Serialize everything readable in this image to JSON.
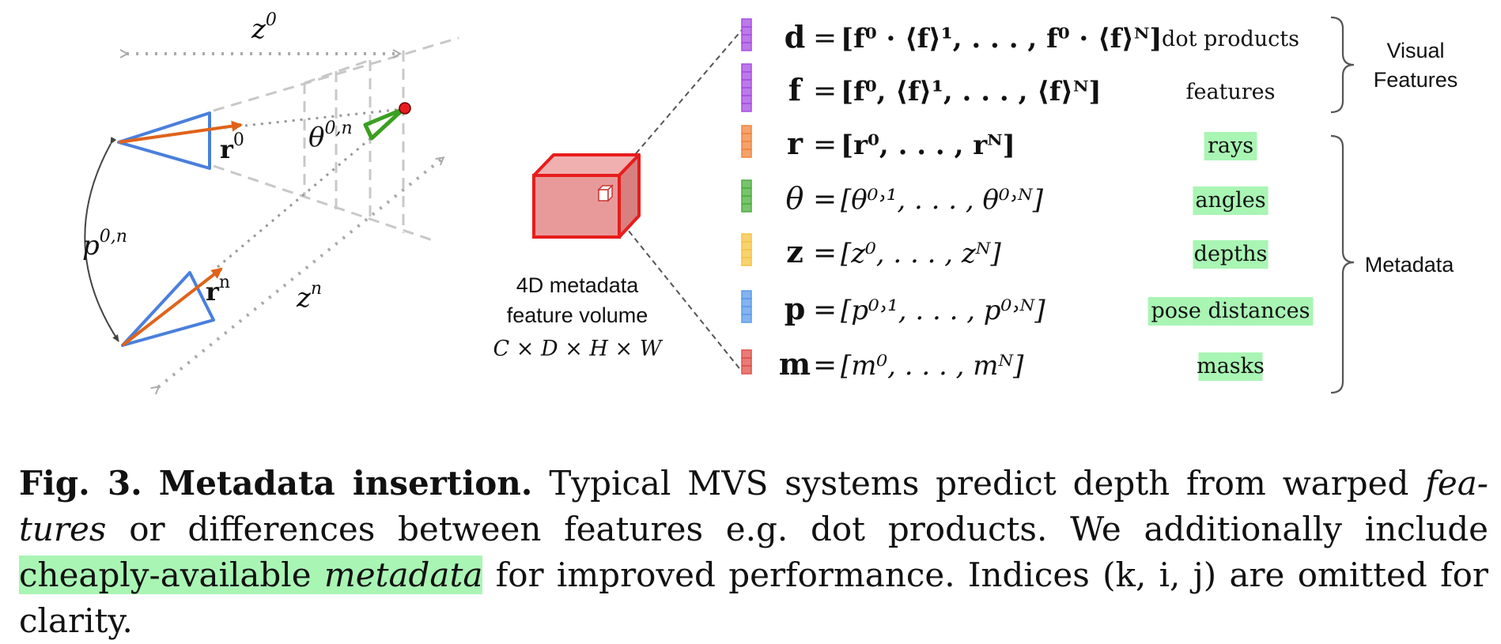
{
  "figure": {
    "cameras": {
      "z0": "z",
      "z0_sup": "0",
      "zn": "z",
      "zn_sup": "n",
      "theta": "θ",
      "theta_sup": "0,n",
      "r0": "r",
      "r0_sup": "0",
      "rn": "r",
      "rn_sup": "n",
      "p": "p",
      "p_sup": "0,n"
    },
    "volume": {
      "label_line1": "4D metadata",
      "label_line2": "feature volume",
      "dims": "C × D × H × W"
    },
    "rows": [
      {
        "sym": "d",
        "rhs": "[f⁰ · ⟨f⟩¹, . . . , f⁰ · ⟨f⟩ᴺ]",
        "label": "dot products",
        "highlight": false,
        "color": "#a64ee0"
      },
      {
        "sym": "f",
        "rhs": "[f⁰, ⟨f⟩¹, . . . , ⟨f⟩ᴺ]",
        "label": "features",
        "highlight": false,
        "color": "#a64ee0"
      },
      {
        "sym": "r",
        "rhs": "[r⁰, . . . , rᴺ]",
        "label": "rays",
        "highlight": true,
        "color": "#f0843c"
      },
      {
        "sym": "θ",
        "rhs": "[θ⁰˒¹, . . . , θ⁰˒ᴺ]",
        "label": "angles",
        "highlight": true,
        "color": "#4caf3e"
      },
      {
        "sym": "z",
        "rhs": "[z⁰, . . . , zᴺ]",
        "label": "depths",
        "highlight": true,
        "color": "#f5c242"
      },
      {
        "sym": "p",
        "rhs": "[p⁰˒¹, . . . , p⁰˒ᴺ]",
        "label": "pose distances",
        "highlight": true,
        "color": "#5b9bea"
      },
      {
        "sym": "m",
        "rhs": "[m⁰, . . . , mᴺ]",
        "label": "masks",
        "highlight": true,
        "color": "#e0504a"
      }
    ],
    "groups": {
      "visual_line1": "Visual",
      "visual_line2": "Features",
      "metadata": "Metadata"
    }
  },
  "caption": {
    "fig": "Fig. 3.",
    "title": "Metadata insertion.",
    "t1": "Typical MVS systems predict depth from warped",
    "t2": "fea­tures",
    "t3": "or differences between features e.g. dot products. We additionally include",
    "t4": "cheaply-available",
    "t5": "metadata",
    "t6": "for improved performance. Indices (k, i, j) are omitted for clarity."
  },
  "colors": {
    "camera": "#4a7fdc",
    "ray": "#e0621a",
    "angle": "#3aa020",
    "volume_fill": "#e89a9a",
    "volume_edge": "#e81c1c",
    "highlight": "#a9f5b4"
  }
}
